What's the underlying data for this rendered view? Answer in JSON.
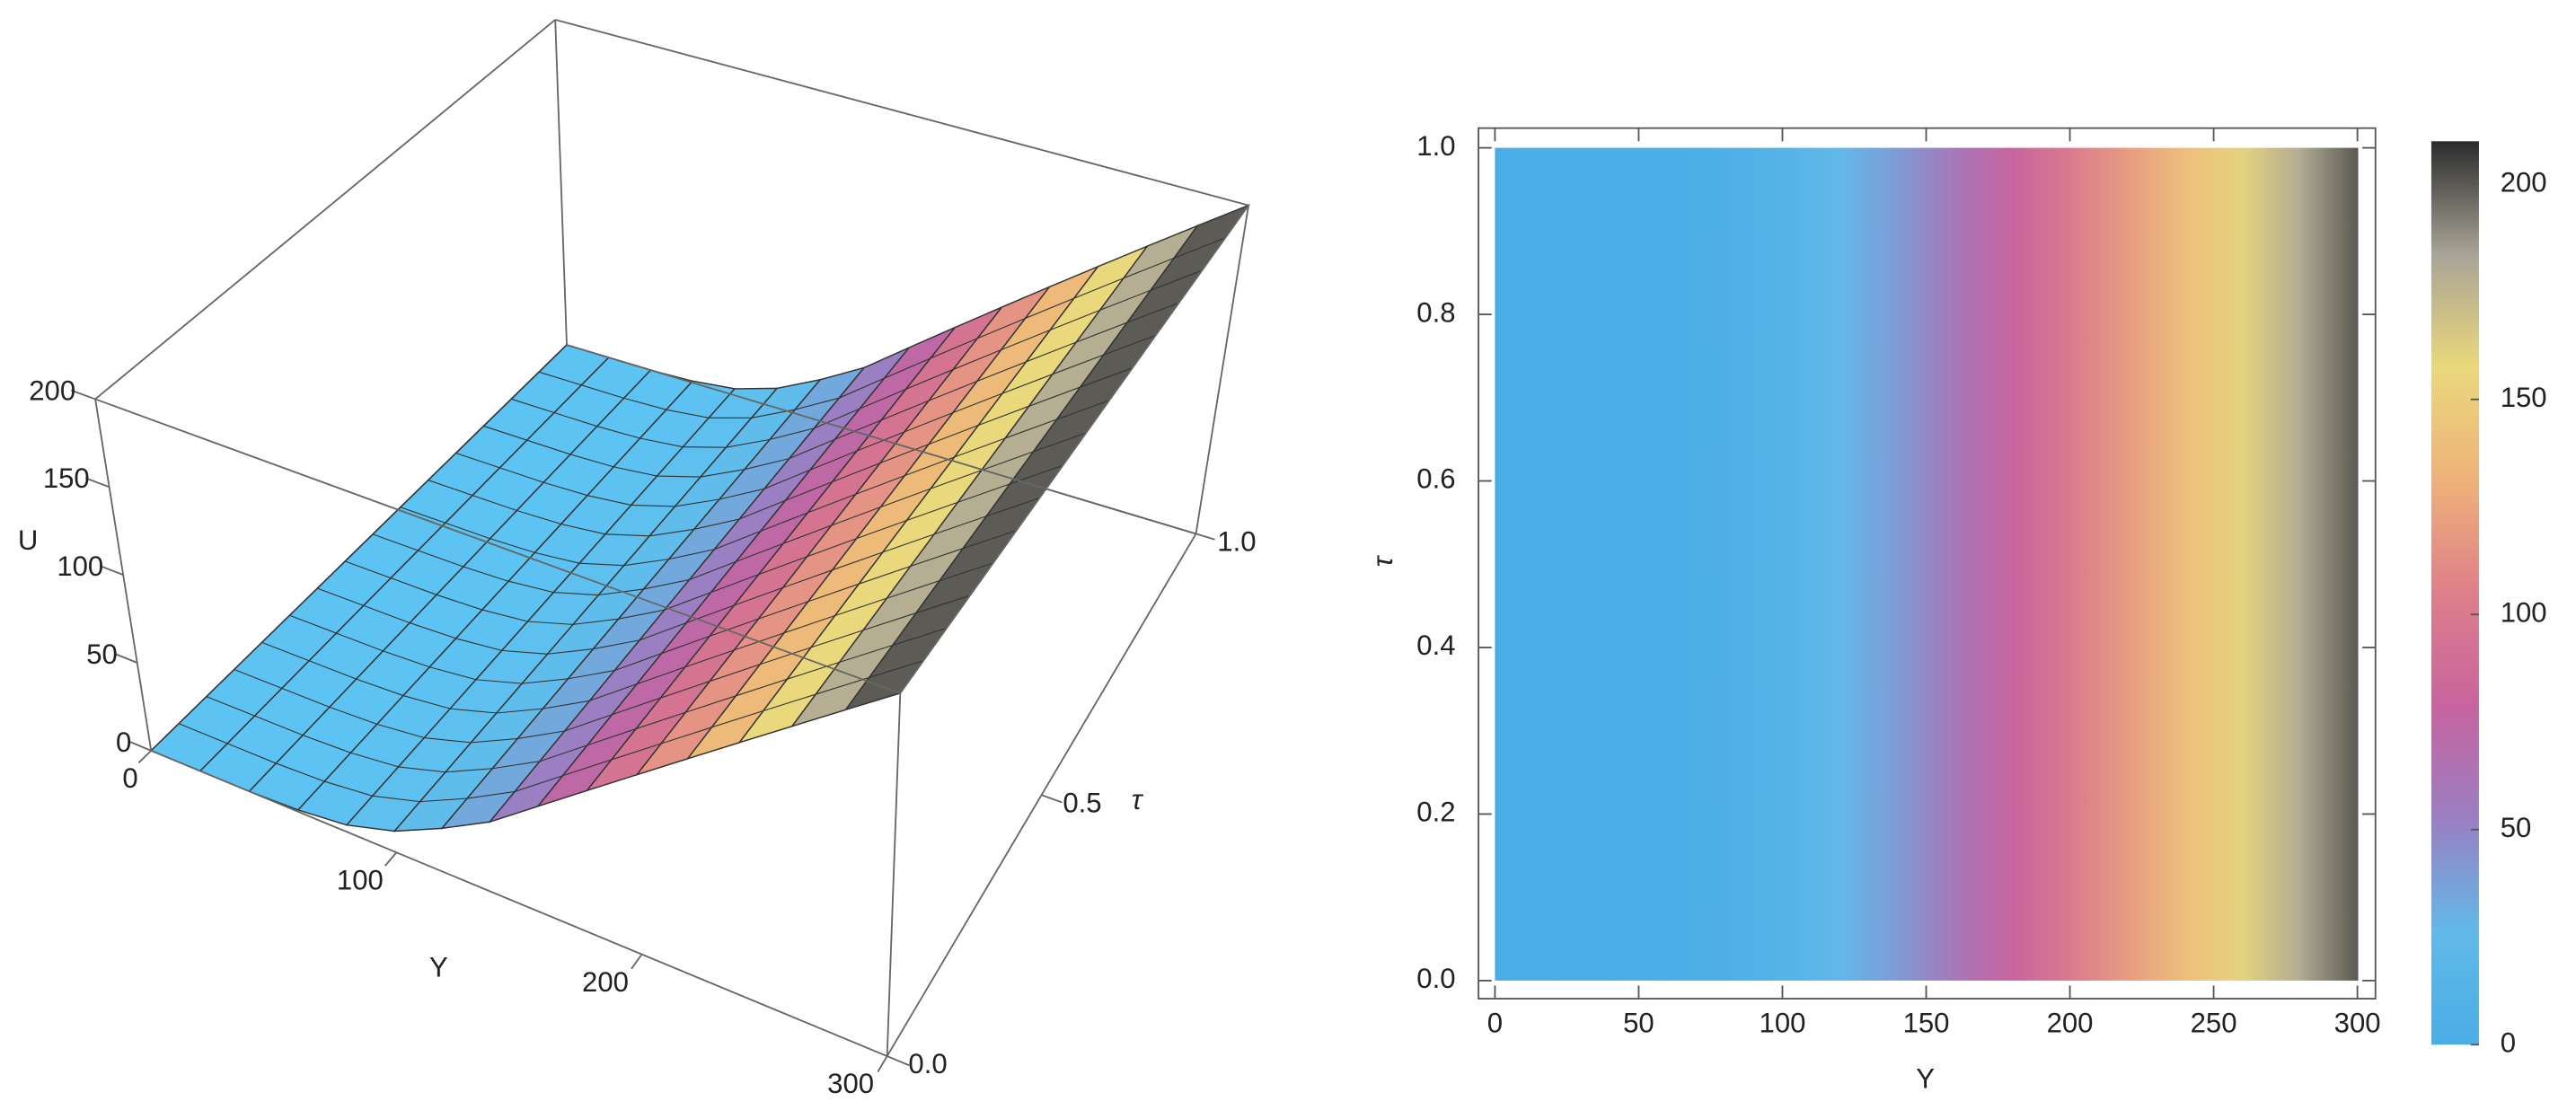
{
  "chart_data": [
    {
      "type": "surface3d",
      "x_label": "Y",
      "y_label": "τ",
      "z_label": "U",
      "x": [
        0,
        20,
        40,
        60,
        80,
        100,
        120,
        140,
        160,
        180,
        200,
        220,
        240,
        260,
        280,
        300
      ],
      "values": [
        0,
        0,
        0,
        1,
        4,
        12,
        25,
        40,
        60,
        80,
        100,
        120,
        140,
        160,
        180,
        200
      ],
      "xlim": [
        0,
        300
      ],
      "ylim": [
        0,
        1
      ],
      "zlim": [
        0,
        200
      ],
      "xticks": [
        0,
        100,
        200,
        300
      ],
      "yticks": [
        {
          "value": 0,
          "label": "0.0"
        },
        {
          "value": 0.5,
          "label": "0.5"
        },
        {
          "value": 1,
          "label": "1.0"
        }
      ],
      "zticks": [
        0,
        50,
        100,
        150,
        200
      ],
      "colormap": [
        "#5cc3f2",
        "#62b9e9",
        "#9a7fc2",
        "#c7649f",
        "#de7f8a",
        "#eeb27a",
        "#ead87c",
        "#a8a497",
        "#2b2b2b"
      ],
      "mesh": true
    },
    {
      "type": "density",
      "x_label": "Y",
      "y_label": "τ",
      "x": [
        0,
        20,
        40,
        60,
        80,
        100,
        120,
        140,
        160,
        180,
        200,
        220,
        240,
        260,
        280,
        300
      ],
      "values": [
        0,
        0,
        0,
        1,
        4,
        12,
        25,
        40,
        60,
        80,
        100,
        120,
        140,
        160,
        180,
        200
      ],
      "xlim": [
        0,
        300
      ],
      "ylim": [
        0,
        1
      ],
      "xticks": [
        0,
        50,
        100,
        150,
        200,
        250,
        300
      ],
      "yticks": [
        {
          "value": 0,
          "label": "0.0"
        },
        {
          "value": 0.2,
          "label": "0.2"
        },
        {
          "value": 0.4,
          "label": "0.4"
        },
        {
          "value": 0.6,
          "label": "0.6"
        },
        {
          "value": 0.8,
          "label": "0.8"
        },
        {
          "value": 1,
          "label": "1.0"
        }
      ],
      "colorbar": {
        "lim": [
          0,
          210
        ],
        "ticks": [
          0,
          50,
          100,
          150,
          200
        ]
      },
      "colormap": [
        "#4aaee6",
        "#62b9e9",
        "#9a7fc2",
        "#c7649f",
        "#de7f8a",
        "#eeb27a",
        "#ead87c",
        "#a8a497",
        "#2b2b2b"
      ]
    }
  ]
}
